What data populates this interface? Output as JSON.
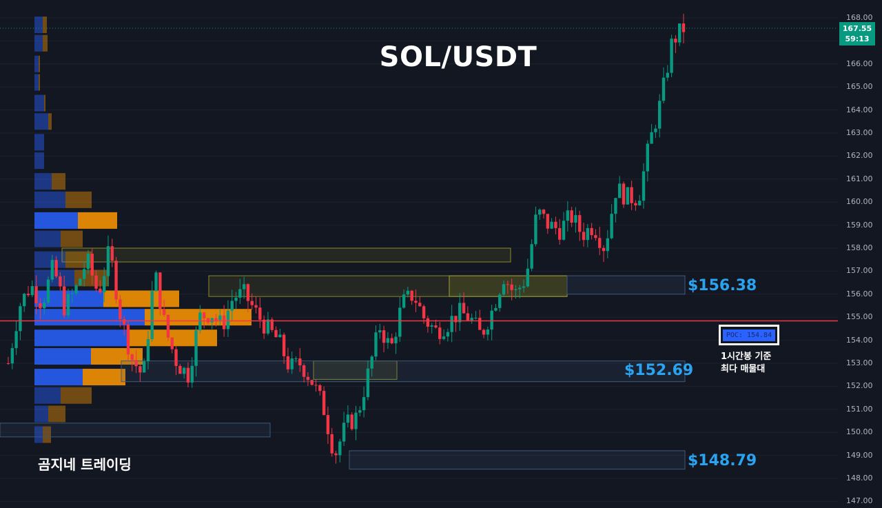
{
  "title": "SOL/USDT",
  "brand": "곰지네 트레이딩",
  "poc": {
    "label": "POC: 154.84",
    "note_line1": "1시간봉 기준",
    "note_line2": "최다 매물대"
  },
  "current_price": {
    "price": "167.55",
    "countdown": "59:13"
  },
  "zones": [
    {
      "name": "zone-156",
      "label": "$156.38",
      "low": 156.0,
      "high": 156.8
    },
    {
      "name": "zone-152",
      "label": "$152.69",
      "low": 152.2,
      "high": 153.1
    },
    {
      "name": "zone-148",
      "label": "$148.79",
      "low": 148.4,
      "high": 149.2
    }
  ],
  "colors": {
    "up": "#089981",
    "down": "#f23645",
    "background": "#131722",
    "zone_label": "#2aa3f0",
    "poc_line": "#f23645",
    "volume_buy": "#2962ff",
    "volume_sell": "#ff9800"
  },
  "chart_data": {
    "type": "candlestick",
    "title": "SOL/USDT",
    "y_axis_ticks": [
      "168.00",
      "167.00",
      "166.00",
      "165.00",
      "164.00",
      "163.00",
      "162.00",
      "161.00",
      "160.00",
      "159.00",
      "158.00",
      "157.00",
      "156.00",
      "155.00",
      "154.00",
      "153.00",
      "152.00",
      "151.00",
      "150.00",
      "149.00",
      "148.00",
      "147.00"
    ],
    "ylim": [
      146.8,
      168.5
    ],
    "poc_price": 154.84,
    "last_price": 167.55,
    "close_path": [
      153.0,
      155.5,
      156.4,
      155.6,
      157.2,
      155.4,
      156.2,
      157.5,
      156.0,
      157.9,
      155.0,
      153.2,
      152.4,
      157.0,
      154.4,
      153.0,
      152.5,
      155.0,
      155.2,
      154.6,
      155.9,
      156.0,
      155.2,
      154.5,
      154.0,
      152.8,
      153.0,
      152.2,
      151.1,
      149.0,
      150.3,
      150.7,
      152.6,
      154.6,
      153.6,
      155.6,
      156.0,
      154.9,
      154.4,
      154.7,
      155.2,
      155.0,
      154.2,
      155.3,
      156.8,
      156.0,
      156.7,
      159.6,
      159.0,
      158.8,
      159.4,
      158.6,
      159.0,
      158.0,
      160.6,
      160.2,
      160.2,
      162.6,
      164.4,
      167.0,
      167.55
    ],
    "supply_boxes": [
      {
        "low": 157.4,
        "high": 158.0
      },
      {
        "low": 155.9,
        "high": 156.8
      },
      {
        "low": 152.3,
        "high": 153.1
      }
    ],
    "volume_profile": [
      {
        "price": 167.7,
        "buy": 12,
        "sell": 6
      },
      {
        "price": 166.9,
        "buy": 12,
        "sell": 7
      },
      {
        "price": 166.0,
        "buy": 6,
        "sell": 2
      },
      {
        "price": 165.2,
        "buy": 6,
        "sell": 2
      },
      {
        "price": 164.3,
        "buy": 14,
        "sell": 2
      },
      {
        "price": 163.5,
        "buy": 20,
        "sell": 5
      },
      {
        "price": 162.6,
        "buy": 14,
        "sell": 0
      },
      {
        "price": 161.8,
        "buy": 14,
        "sell": 0
      },
      {
        "price": 160.9,
        "buy": 25,
        "sell": 20
      },
      {
        "price": 160.1,
        "buy": 45,
        "sell": 38
      },
      {
        "price": 159.2,
        "buy": 63,
        "sell": 57
      },
      {
        "price": 158.4,
        "buy": 38,
        "sell": 32
      },
      {
        "price": 157.5,
        "buy": 45,
        "sell": 38
      },
      {
        "price": 156.7,
        "buy": 58,
        "sell": 50
      },
      {
        "price": 155.8,
        "buy": 100,
        "sell": 110
      },
      {
        "price": 155.0,
        "buy": 160,
        "sell": 155
      },
      {
        "price": 154.1,
        "buy": 135,
        "sell": 130
      },
      {
        "price": 153.3,
        "buy": 82,
        "sell": 75
      },
      {
        "price": 152.4,
        "buy": 70,
        "sell": 62
      },
      {
        "price": 151.6,
        "buy": 38,
        "sell": 45
      },
      {
        "price": 150.8,
        "buy": 20,
        "sell": 25
      },
      {
        "price": 149.9,
        "buy": 12,
        "sell": 12
      }
    ]
  }
}
